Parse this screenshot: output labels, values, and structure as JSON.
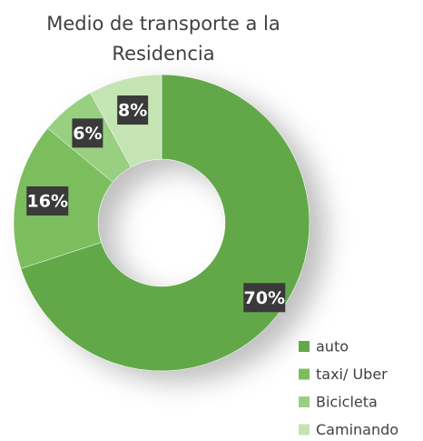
{
  "chart_data": {
    "type": "donut",
    "title": "Medio de transporte a la Residencia",
    "categories": [
      "auto",
      "taxi/ Uber",
      "Bicicleta",
      "Caminando"
    ],
    "values": [
      70,
      16,
      6,
      8
    ],
    "value_labels": [
      "70%",
      "16%",
      "6%",
      "8%"
    ],
    "colors": [
      "#62a84a",
      "#7cbd5d",
      "#99cf80",
      "#c4e4b3"
    ],
    "legend": "bottom-right"
  }
}
